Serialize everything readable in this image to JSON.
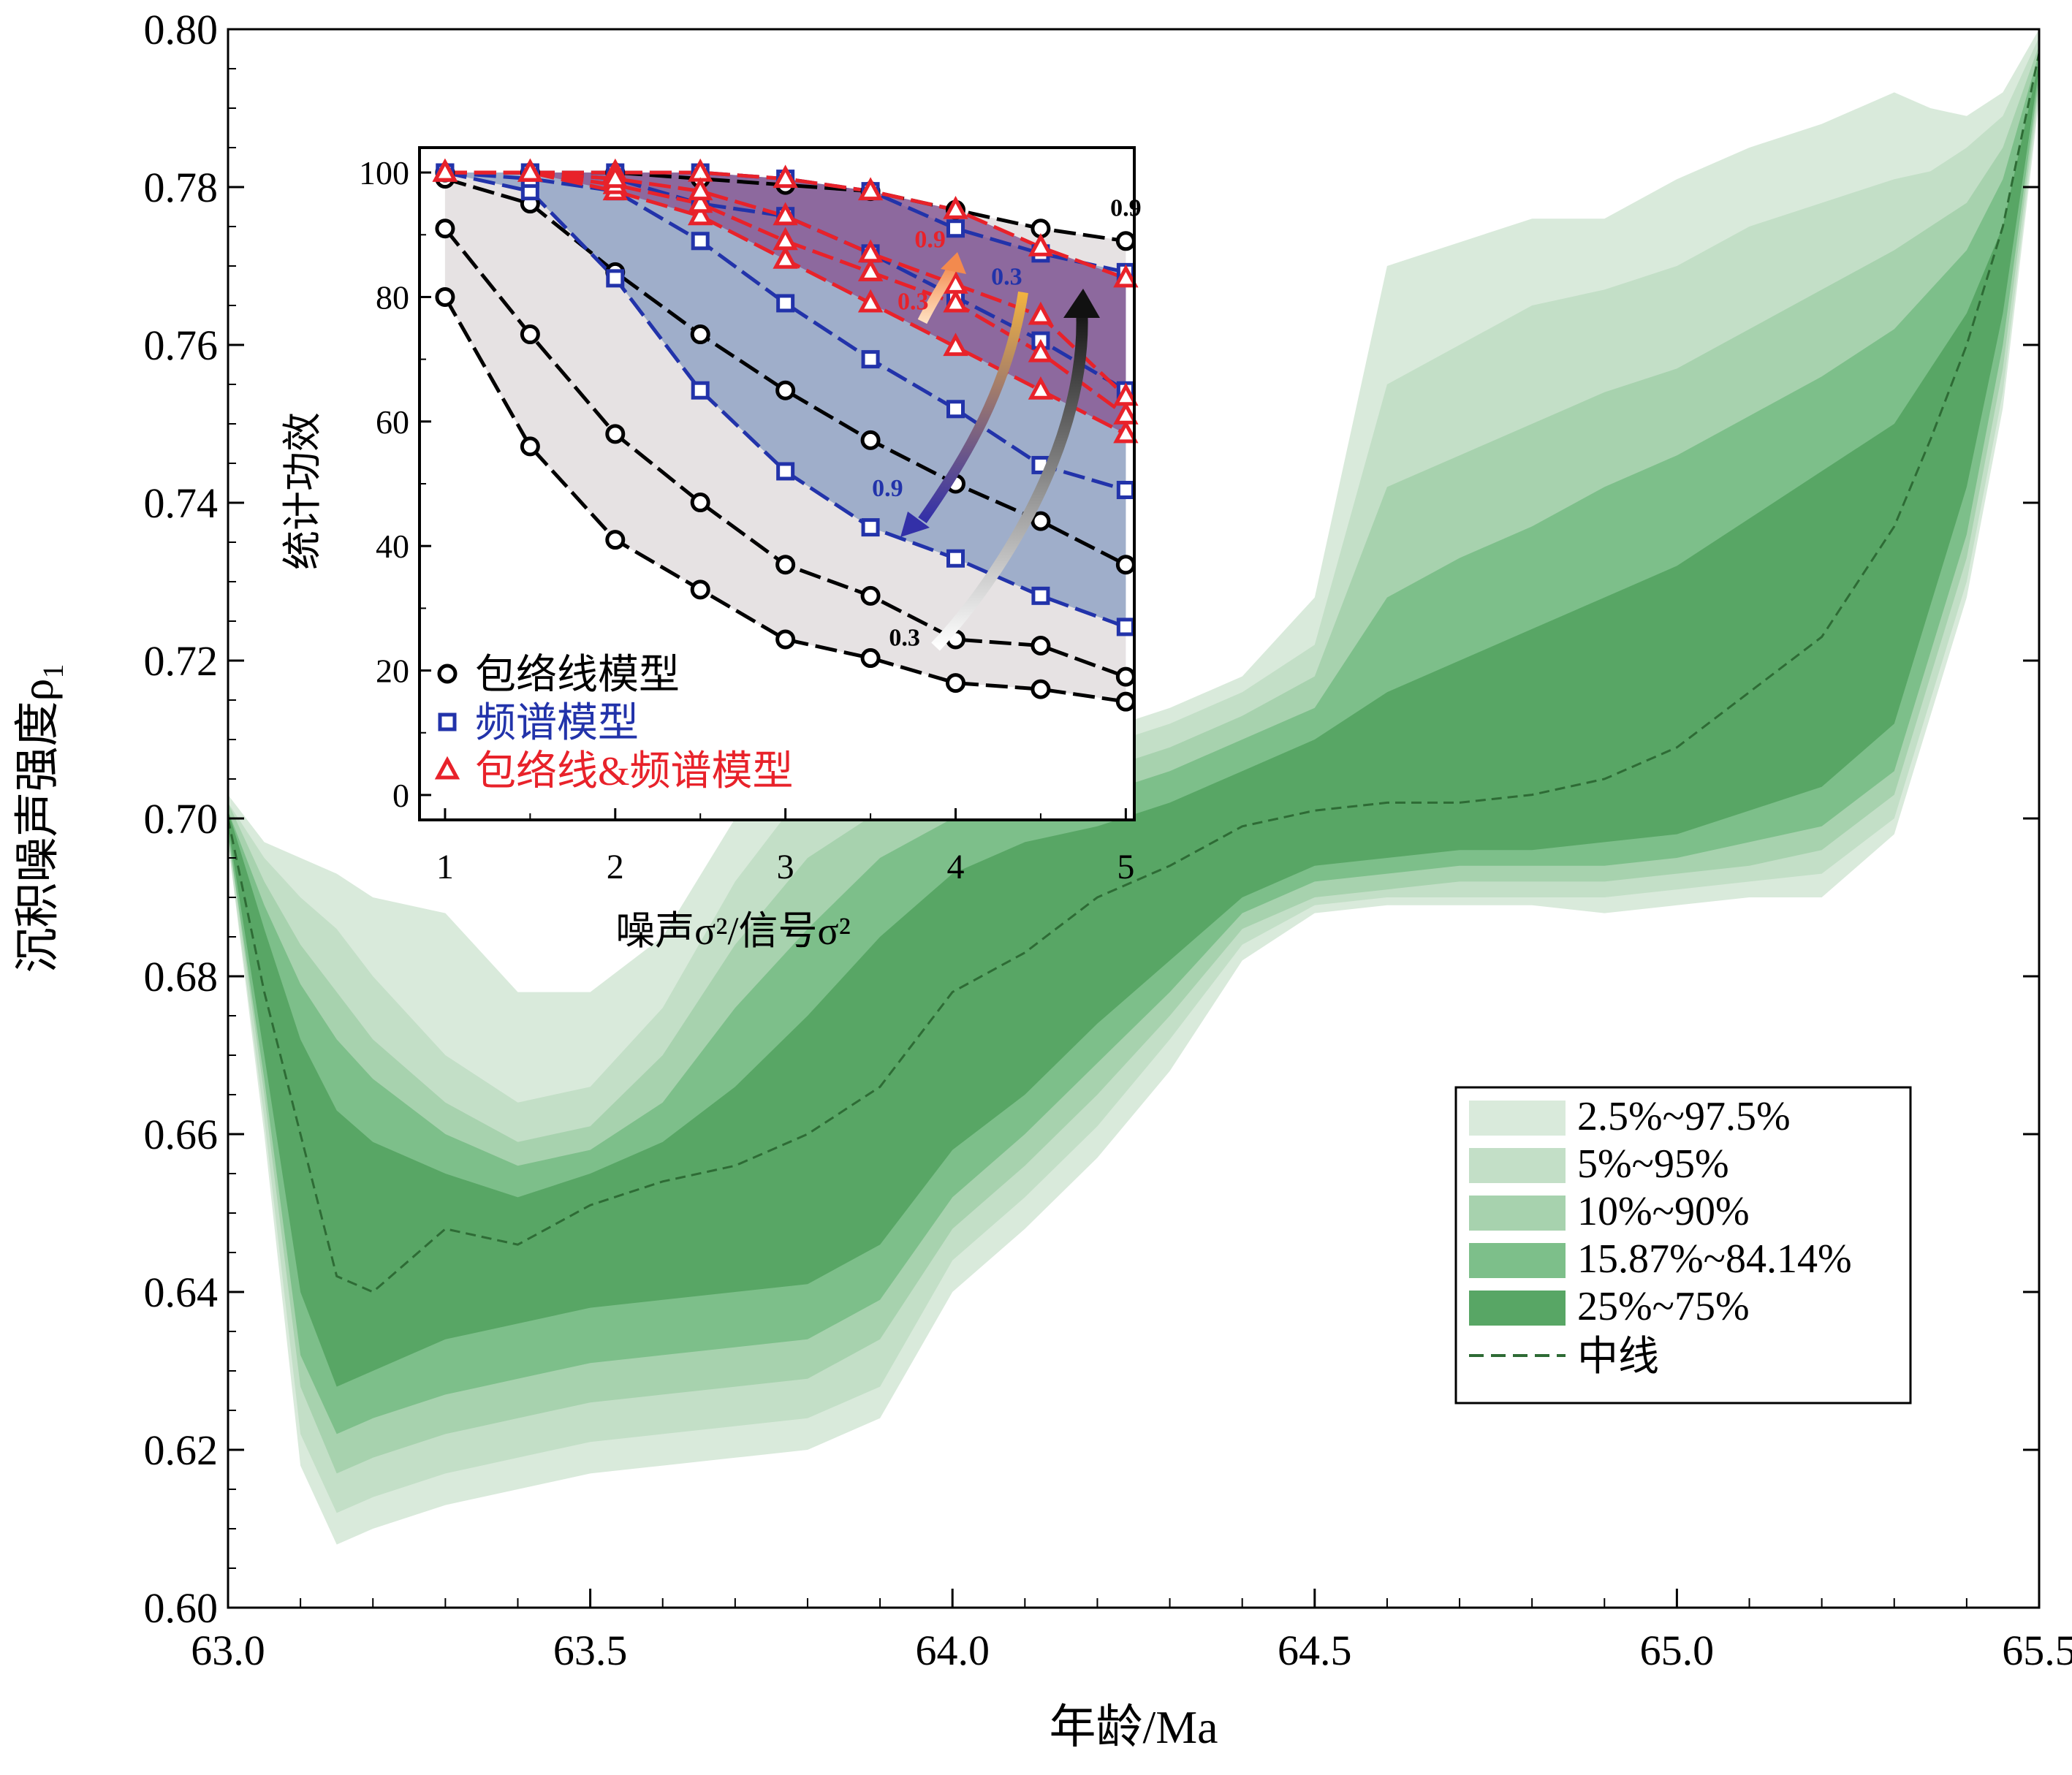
{
  "chart_data": [
    {
      "type": "area",
      "xlabel": "年龄/Ma",
      "ylabel": "沉积噪声强度ρ",
      "ylabel_sub": "1",
      "xlim": [
        63.0,
        65.5
      ],
      "ylim": [
        0.6,
        0.8
      ],
      "xticks": [
        "63.0",
        "63.5",
        "64.0",
        "64.5",
        "65.0",
        "65.5"
      ],
      "yticks": [
        "0.60",
        "0.62",
        "0.64",
        "0.66",
        "0.68",
        "0.70",
        "0.72",
        "0.74",
        "0.76",
        "0.78",
        "0.80"
      ],
      "legend_position": "lower-right",
      "x": [
        63.0,
        63.05,
        63.1,
        63.15,
        63.2,
        63.3,
        63.4,
        63.5,
        63.6,
        63.7,
        63.8,
        63.9,
        64.0,
        64.1,
        64.2,
        64.3,
        64.4,
        64.5,
        64.6,
        64.7,
        64.8,
        64.9,
        65.0,
        65.1,
        65.2,
        65.3,
        65.35,
        65.4,
        65.45,
        65.5
      ],
      "median": {
        "name": "中线",
        "color": "#2e6b35",
        "values": [
          0.7,
          0.678,
          0.66,
          0.642,
          0.64,
          0.648,
          0.646,
          0.651,
          0.654,
          0.656,
          0.66,
          0.666,
          0.678,
          0.683,
          0.69,
          0.694,
          0.699,
          0.701,
          0.702,
          0.702,
          0.703,
          0.705,
          0.709,
          0.716,
          0.723,
          0.737,
          0.748,
          0.76,
          0.775,
          0.797
        ]
      },
      "bands": [
        {
          "name": "2.5%~97.5%",
          "color": "#d9eadb",
          "lower": [
            0.697,
            0.66,
            0.618,
            0.608,
            0.61,
            0.613,
            0.615,
            0.617,
            0.618,
            0.619,
            0.62,
            0.624,
            0.64,
            0.648,
            0.657,
            0.668,
            0.682,
            0.688,
            0.689,
            0.689,
            0.689,
            0.688,
            0.689,
            0.69,
            0.69,
            0.698,
            0.713,
            0.728,
            0.752,
            0.791
          ],
          "upper": [
            0.703,
            0.697,
            0.695,
            0.693,
            0.69,
            0.688,
            0.678,
            0.678,
            0.685,
            0.7,
            0.707,
            0.709,
            0.71,
            0.71,
            0.711,
            0.714,
            0.718,
            0.728,
            0.77,
            0.773,
            0.776,
            0.776,
            0.781,
            0.785,
            0.788,
            0.792,
            0.79,
            0.789,
            0.792,
            0.8
          ]
        },
        {
          "name": "5%~95%",
          "color": "#c3dfc7",
          "lower": [
            0.697,
            0.662,
            0.622,
            0.612,
            0.614,
            0.617,
            0.619,
            0.621,
            0.622,
            0.623,
            0.624,
            0.628,
            0.644,
            0.652,
            0.661,
            0.672,
            0.684,
            0.689,
            0.69,
            0.69,
            0.69,
            0.69,
            0.691,
            0.692,
            0.693,
            0.7,
            0.715,
            0.73,
            0.754,
            0.792
          ],
          "upper": [
            0.702,
            0.695,
            0.69,
            0.686,
            0.68,
            0.67,
            0.664,
            0.666,
            0.676,
            0.692,
            0.704,
            0.707,
            0.708,
            0.708,
            0.709,
            0.712,
            0.716,
            0.722,
            0.755,
            0.76,
            0.765,
            0.767,
            0.77,
            0.775,
            0.778,
            0.781,
            0.782,
            0.785,
            0.789,
            0.799
          ]
        },
        {
          "name": "10%~90%",
          "color": "#a7d2ae",
          "lower": [
            0.698,
            0.665,
            0.628,
            0.617,
            0.619,
            0.622,
            0.624,
            0.626,
            0.627,
            0.628,
            0.629,
            0.634,
            0.648,
            0.656,
            0.665,
            0.675,
            0.686,
            0.69,
            0.691,
            0.692,
            0.692,
            0.692,
            0.693,
            0.694,
            0.696,
            0.703,
            0.718,
            0.733,
            0.757,
            0.793
          ],
          "upper": [
            0.702,
            0.692,
            0.684,
            0.678,
            0.672,
            0.664,
            0.659,
            0.661,
            0.67,
            0.684,
            0.695,
            0.701,
            0.704,
            0.705,
            0.706,
            0.709,
            0.713,
            0.718,
            0.742,
            0.746,
            0.75,
            0.754,
            0.757,
            0.762,
            0.767,
            0.772,
            0.775,
            0.778,
            0.785,
            0.798
          ]
        },
        {
          "name": "15.87%~84.14%",
          "color": "#7dbf8a",
          "lower": [
            0.698,
            0.667,
            0.632,
            0.622,
            0.624,
            0.627,
            0.629,
            0.631,
            0.632,
            0.633,
            0.634,
            0.639,
            0.652,
            0.66,
            0.669,
            0.678,
            0.688,
            0.692,
            0.693,
            0.694,
            0.694,
            0.694,
            0.695,
            0.697,
            0.699,
            0.706,
            0.721,
            0.736,
            0.76,
            0.794
          ],
          "upper": [
            0.701,
            0.689,
            0.679,
            0.672,
            0.667,
            0.66,
            0.656,
            0.658,
            0.664,
            0.676,
            0.686,
            0.695,
            0.7,
            0.702,
            0.703,
            0.706,
            0.71,
            0.714,
            0.728,
            0.733,
            0.737,
            0.742,
            0.746,
            0.751,
            0.756,
            0.762,
            0.767,
            0.772,
            0.781,
            0.797
          ]
        },
        {
          "name": "25%~75%",
          "color": "#58a665",
          "lower": [
            0.699,
            0.67,
            0.64,
            0.628,
            0.63,
            0.634,
            0.636,
            0.638,
            0.639,
            0.64,
            0.641,
            0.646,
            0.658,
            0.665,
            0.674,
            0.682,
            0.69,
            0.694,
            0.695,
            0.696,
            0.696,
            0.697,
            0.698,
            0.701,
            0.704,
            0.712,
            0.727,
            0.742,
            0.764,
            0.795
          ],
          "upper": [
            0.701,
            0.686,
            0.672,
            0.663,
            0.659,
            0.655,
            0.652,
            0.655,
            0.659,
            0.666,
            0.675,
            0.685,
            0.693,
            0.697,
            0.699,
            0.702,
            0.706,
            0.71,
            0.716,
            0.72,
            0.724,
            0.728,
            0.732,
            0.738,
            0.744,
            0.75,
            0.757,
            0.764,
            0.775,
            0.796
          ]
        }
      ]
    },
    {
      "type": "line",
      "xlabel": "噪声σ²/信号σ²",
      "ylabel": "统计功效",
      "xlim": [
        0.85,
        5.05
      ],
      "ylim": [
        -4,
        104
      ],
      "xticks": [
        "1",
        "2",
        "3",
        "4",
        "5"
      ],
      "yticks": [
        "0",
        "20",
        "40",
        "60",
        "80",
        "100"
      ],
      "x": [
        1,
        1.5,
        2,
        2.5,
        3,
        3.5,
        4,
        4.5,
        5
      ],
      "legend_position": "lower-left",
      "groups": [
        {
          "name": "包络线模型",
          "color": "#000000",
          "marker": "circle",
          "fill": "#e3dfe0",
          "series": [
            {
              "values": [
                99,
                95,
                84,
                74,
                65,
                57,
                50,
                44,
                37
              ]
            },
            {
              "values": [
                91,
                74,
                58,
                47,
                37,
                32,
                25,
                24,
                19
              ]
            },
            {
              "values": [
                80,
                56,
                41,
                33,
                25,
                22,
                18,
                17,
                15
              ]
            },
            {
              "values": [
                100,
                100,
                100,
                99,
                98,
                97,
                94,
                91,
                89
              ]
            }
          ]
        },
        {
          "name": "频谱模型",
          "color": "#2233aa",
          "marker": "square",
          "fill": "#97a8c6",
          "series": [
            {
              "values": [
                100,
                100,
                100,
                100,
                99,
                97,
                91,
                87,
                84
              ]
            },
            {
              "values": [
                100,
                97,
                83,
                65,
                52,
                43,
                38,
                32,
                27
              ]
            },
            {
              "values": [
                100,
                99,
                97,
                89,
                79,
                70,
                62,
                53,
                49
              ]
            },
            {
              "values": [
                100,
                100,
                99,
                95,
                93,
                87,
                80,
                73,
                65
              ]
            }
          ]
        },
        {
          "name": "包络线&频谱模型",
          "color": "#e8222a",
          "marker": "triangle",
          "fill": "#8a5d97",
          "series": [
            {
              "values": [
                100,
                100,
                100,
                100,
                99,
                97,
                94,
                88,
                83
              ]
            },
            {
              "values": [
                100,
                100,
                97,
                93,
                86,
                79,
                72,
                65,
                58
              ]
            },
            {
              "values": [
                100,
                100,
                98,
                95,
                89,
                84,
                79,
                71,
                61
              ]
            },
            {
              "values": [
                100,
                100,
                99,
                97,
                93,
                87,
                82,
                77,
                64
              ]
            }
          ]
        }
      ],
      "annotations": [
        {
          "text": "0.9",
          "x": 5.0,
          "y": 93,
          "color": "#000000"
        },
        {
          "text": "0.9",
          "x": 3.6,
          "y": 48,
          "color": "#2233aa"
        },
        {
          "text": "0.3",
          "x": 4.3,
          "y": 82,
          "color": "#2233aa"
        },
        {
          "text": "0.9",
          "x": 3.85,
          "y": 88,
          "color": "#e8222a"
        },
        {
          "text": "0.3",
          "x": 3.75,
          "y": 78,
          "color": "#e8222a"
        },
        {
          "text": "0.3",
          "x": 3.7,
          "y": 24,
          "color": "#000000"
        }
      ]
    }
  ]
}
